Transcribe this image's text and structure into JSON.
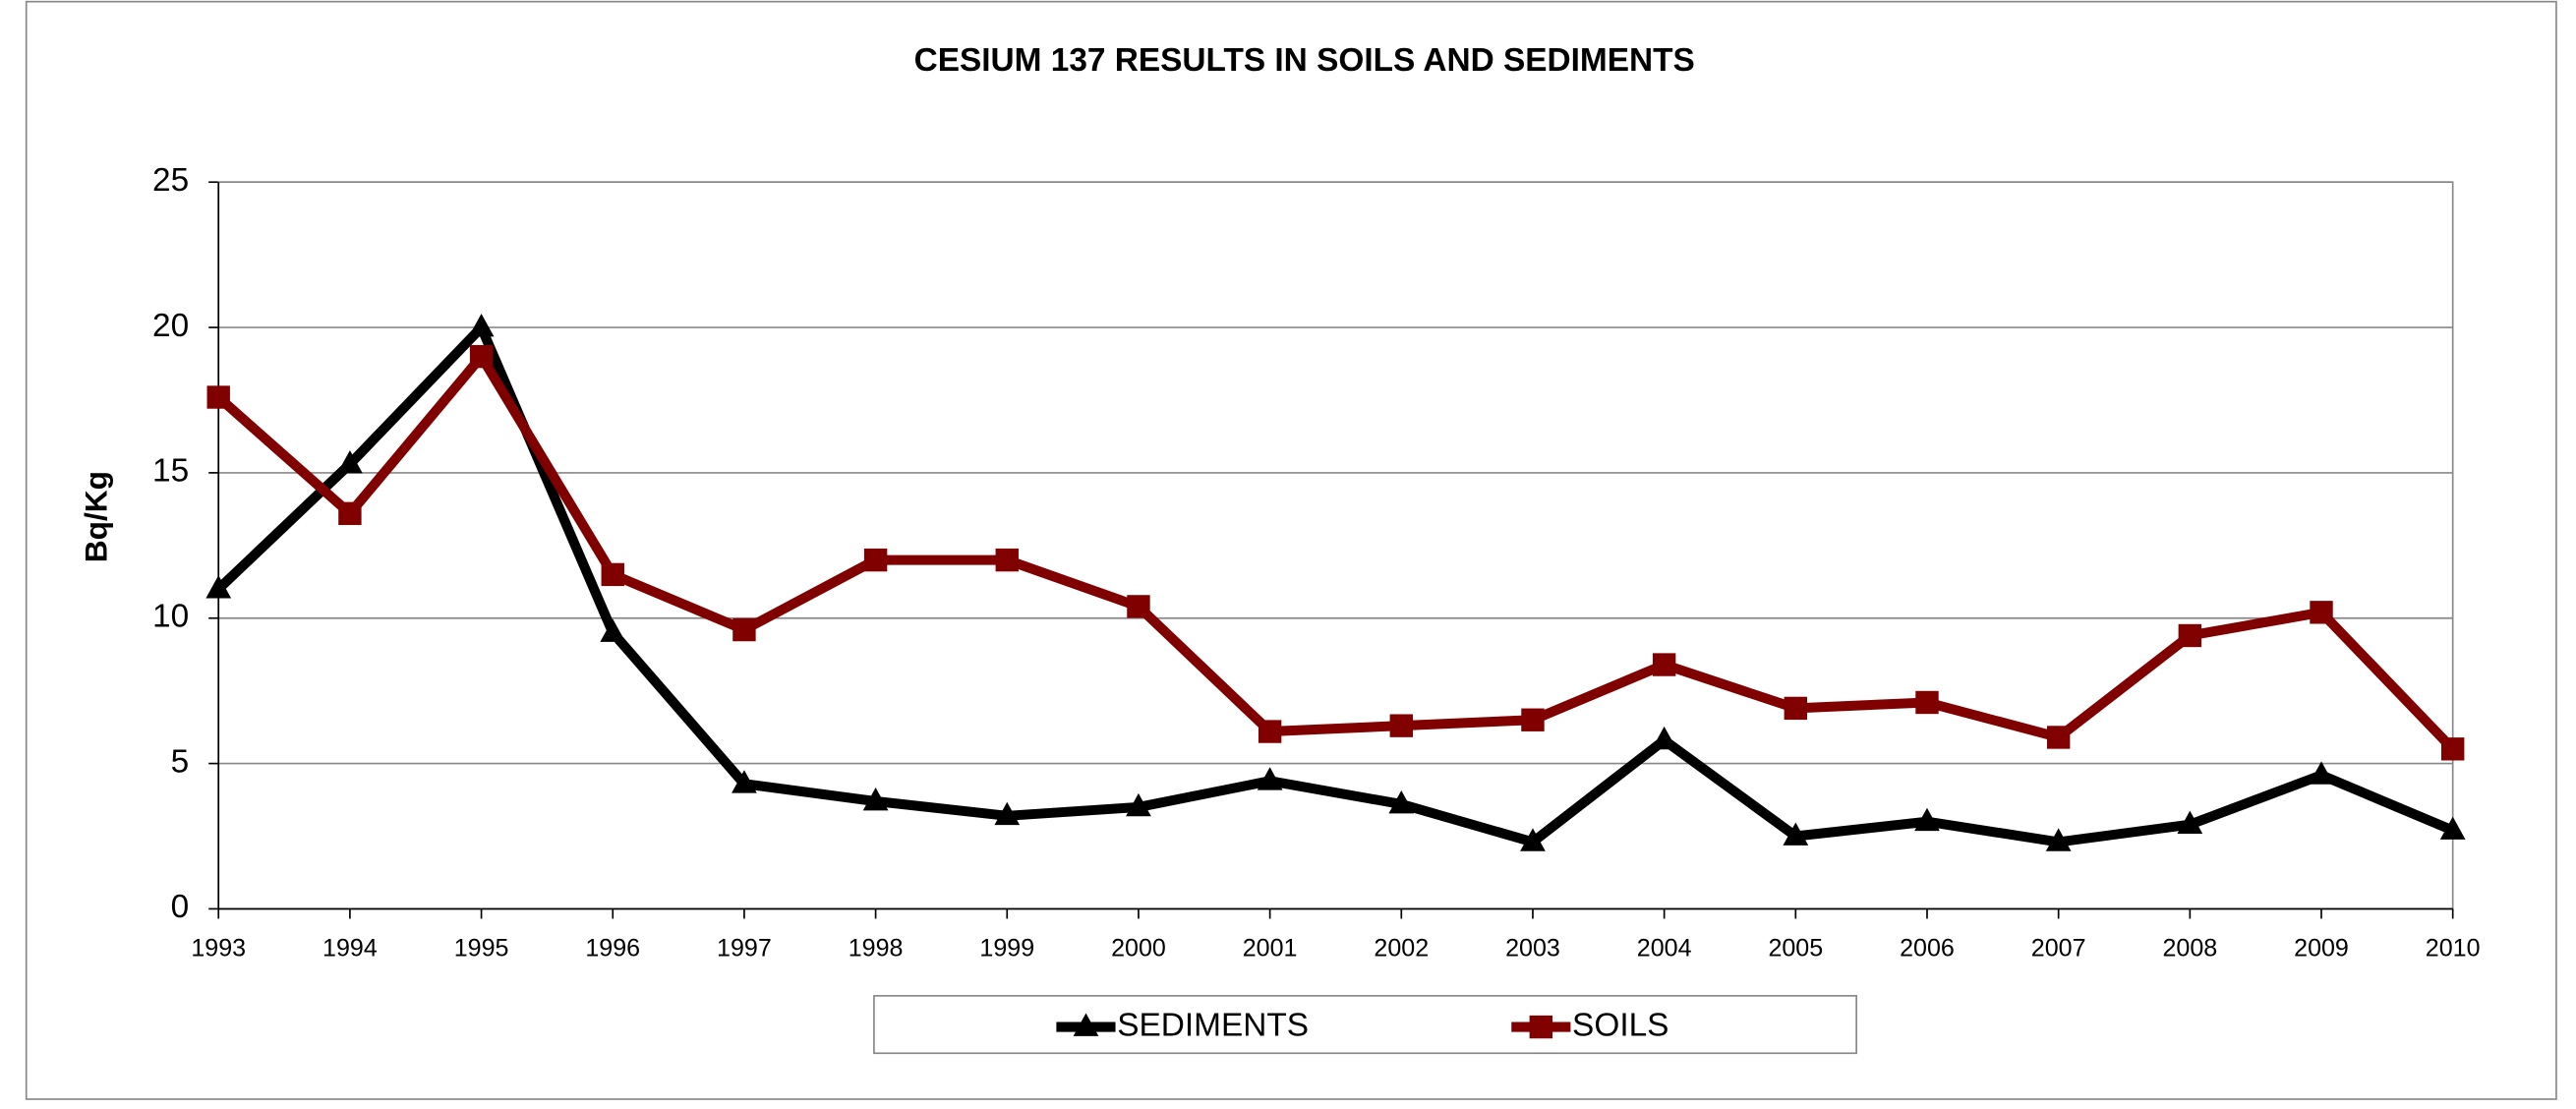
{
  "chart_data": {
    "type": "line",
    "title": "CESIUM 137 RESULTS IN SOILS AND SEDIMENTS",
    "y_label": "Bq/Kg",
    "categories": [
      "1993",
      "1994",
      "1995",
      "1996",
      "1997",
      "1998",
      "1999",
      "2000",
      "2001",
      "2002",
      "2003",
      "2004",
      "2005",
      "2006",
      "2007",
      "2008",
      "2009",
      "2010"
    ],
    "series": [
      {
        "name": "SEDIMENTS",
        "color": "#000000",
        "marker": "triangle",
        "values": [
          11,
          15.3,
          20,
          9.5,
          4.3,
          3.7,
          3.2,
          3.5,
          4.4,
          3.6,
          2.3,
          5.8,
          2.5,
          3.0,
          2.3,
          2.9,
          4.6,
          2.7
        ]
      },
      {
        "name": "SOILS",
        "color": "#800000",
        "marker": "square",
        "values": [
          17.6,
          13.6,
          19.0,
          11.5,
          9.6,
          12.0,
          12.0,
          10.4,
          6.1,
          6.3,
          6.5,
          8.4,
          6.9,
          7.1,
          5.9,
          9.4,
          10.2,
          5.5
        ]
      }
    ],
    "ylim": [
      0,
      25
    ],
    "yticks": [
      0,
      5,
      10,
      15,
      20,
      25
    ],
    "grid": true,
    "legend": "bottom"
  }
}
